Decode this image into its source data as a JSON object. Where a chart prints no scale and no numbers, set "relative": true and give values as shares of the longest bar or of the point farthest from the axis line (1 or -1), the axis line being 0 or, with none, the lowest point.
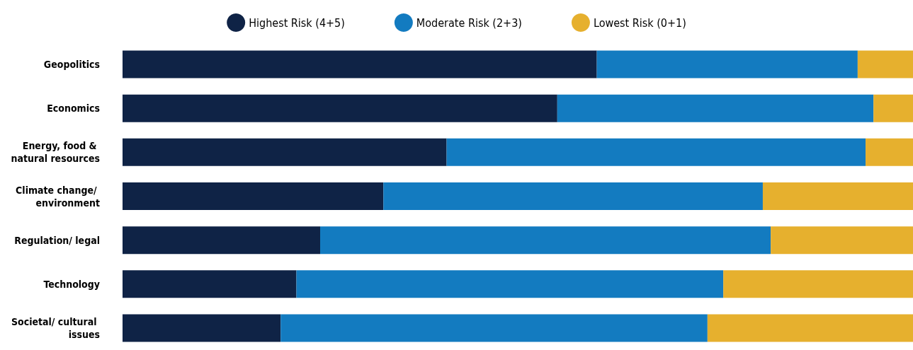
{
  "chart_data": {
    "type": "bar",
    "orientation": "horizontal",
    "stacked": true,
    "relative": true,
    "legend": "top",
    "categories": [
      "Geopolitics",
      "Economics",
      "Energy, food & natural resources",
      "Climate change/ environment",
      "Regulation/ legal",
      "Technology",
      "Societal/ cultural issues"
    ],
    "series": [
      {
        "name": "Highest Risk (4+5)",
        "color": "#0f2346",
        "values": [
          0.6,
          0.55,
          0.41,
          0.33,
          0.25,
          0.22,
          0.2
        ]
      },
      {
        "name": "Moderate Risk (2+3)",
        "color": "#137bc0",
        "values": [
          0.33,
          0.4,
          0.53,
          0.48,
          0.57,
          0.54,
          0.54
        ]
      },
      {
        "name": "Lowest Risk (0+1)",
        "color": "#e6b02e",
        "values": [
          0.07,
          0.05,
          0.06,
          0.19,
          0.18,
          0.24,
          0.26
        ]
      }
    ]
  }
}
